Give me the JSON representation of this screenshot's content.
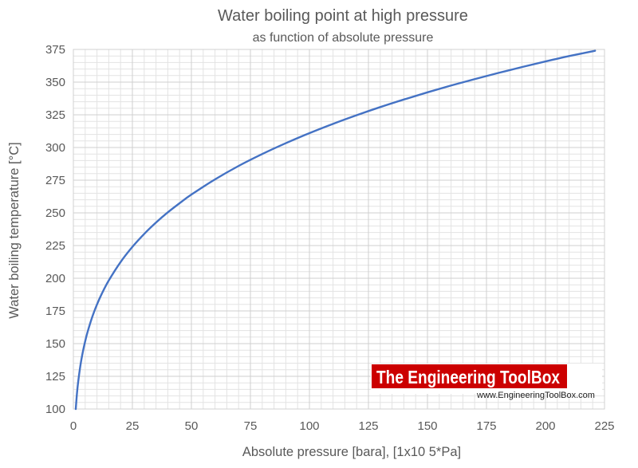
{
  "chart_data": {
    "type": "line",
    "title": "Water boiling point at high pressure",
    "subtitle": "as function of absolute pressure",
    "xlabel": "Absolute pressure [bara], [1x10 5*Pa]",
    "ylabel": "Water boiling temperature [°C]",
    "xlim": [
      0,
      225
    ],
    "ylim": [
      100,
      375
    ],
    "x_ticks": [
      0,
      25,
      50,
      75,
      100,
      125,
      150,
      175,
      200,
      225
    ],
    "y_ticks": [
      100,
      125,
      150,
      175,
      200,
      225,
      250,
      275,
      300,
      325,
      350,
      375
    ],
    "grid": true,
    "series": [
      {
        "name": "Water boiling point",
        "color": "#4472c4",
        "x": [
          1.01,
          1.5,
          2,
          3,
          4,
          5,
          6,
          8,
          10,
          12,
          15,
          20,
          25,
          30,
          35,
          40,
          45,
          50,
          60,
          70,
          80,
          90,
          100,
          110,
          120,
          130,
          140,
          150,
          160,
          170,
          180,
          190,
          200,
          210,
          221
        ],
        "y": [
          100,
          111.4,
          120.2,
          133.5,
          143.6,
          151.8,
          158.8,
          170.4,
          179.9,
          188.0,
          198.3,
          212.4,
          224.0,
          233.9,
          242.6,
          250.4,
          257.4,
          264.0,
          275.6,
          285.9,
          295.0,
          303.3,
          311.0,
          318.1,
          324.7,
          330.9,
          336.7,
          342.2,
          347.4,
          352.3,
          357.0,
          361.5,
          365.8,
          369.9,
          374.0
        ]
      }
    ]
  },
  "watermark": {
    "brand": "The Engineering ToolBox",
    "url": "www.EngineeringToolBox.com",
    "bg_color": "#cc0000"
  }
}
